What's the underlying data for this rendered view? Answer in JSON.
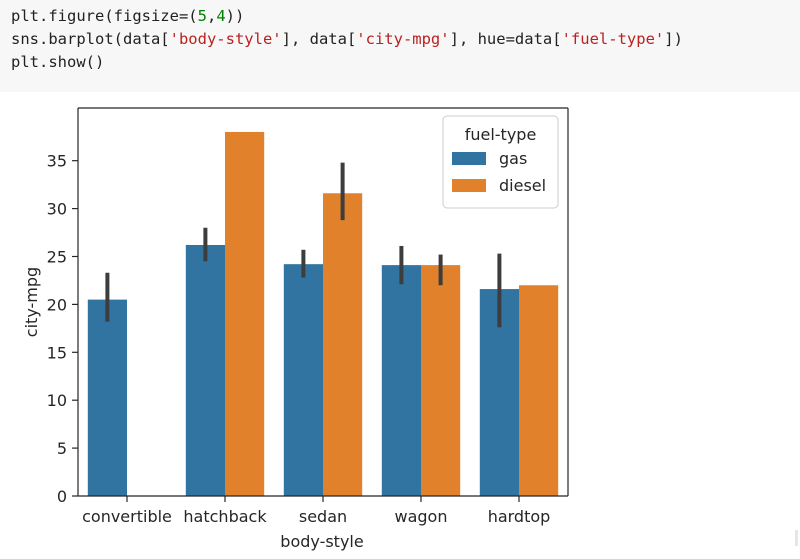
{
  "code_cell": {
    "lines": [
      [
        {
          "t": "plt.figure(figsize=("
        },
        {
          "t": "5",
          "c": "n"
        },
        {
          "t": ","
        },
        {
          "t": "4",
          "c": "n"
        },
        {
          "t": "))"
        }
      ],
      [
        {
          "t": "sns.barplot(data["
        },
        {
          "t": "'body-style'",
          "c": "s"
        },
        {
          "t": "], data["
        },
        {
          "t": "'city-mpg'",
          "c": "s"
        },
        {
          "t": "], hue=data["
        },
        {
          "t": "'fuel-type'",
          "c": "s"
        },
        {
          "t": "])"
        }
      ],
      [
        {
          "t": "plt.show()"
        }
      ]
    ]
  },
  "chart_data": {
    "type": "bar",
    "categories": [
      "convertible",
      "hatchback",
      "sedan",
      "wagon",
      "hardtop"
    ],
    "series": [
      {
        "name": "gas",
        "color": "#3274a1",
        "values": [
          20.5,
          26.2,
          24.2,
          24.1,
          21.6
        ],
        "ci": [
          [
            18.2,
            23.3
          ],
          [
            24.5,
            28.0
          ],
          [
            22.8,
            25.7
          ],
          [
            22.1,
            26.1
          ],
          [
            17.6,
            25.3
          ]
        ]
      },
      {
        "name": "diesel",
        "color": "#e1812c",
        "values": [
          null,
          38.0,
          31.6,
          24.1,
          22.0
        ],
        "ci": [
          null,
          null,
          [
            28.8,
            34.8
          ],
          [
            22.0,
            25.2
          ],
          null
        ]
      }
    ],
    "xlabel": "body-style",
    "ylabel": "city-mpg",
    "ylim": [
      0,
      40.5
    ],
    "yticks": [
      0,
      5,
      10,
      15,
      20,
      25,
      30,
      35
    ],
    "legend": {
      "title": "fuel-type",
      "placement": "top-right"
    },
    "grid": false
  }
}
